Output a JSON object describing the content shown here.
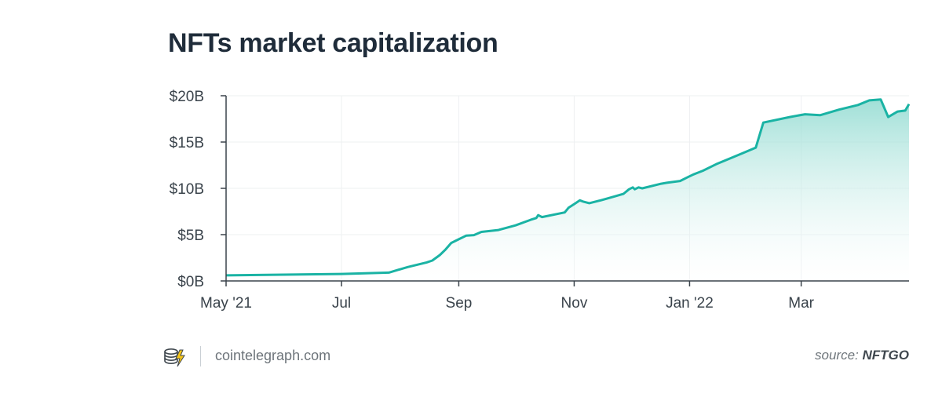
{
  "title": "NFTs market capitalization",
  "footer": {
    "site": "cointelegraph.com",
    "source_prefix": "source:",
    "source_name": "NFTGO"
  },
  "colors": {
    "line": "#1ab3a4",
    "fill_top": "#8fdad0",
    "text": "#1f2c3a",
    "axis_text": "#3a434b",
    "grid": "#eef0f2"
  },
  "icons": {
    "logo": "coin-stack-lightning-icon"
  },
  "chart_data": {
    "type": "area",
    "title": "NFTs market capitalization",
    "xlabel": "",
    "ylabel": "",
    "x_ticks": [
      "May '21",
      "Jul",
      "Sep",
      "Nov",
      "Jan '22",
      "Mar"
    ],
    "x_tick_dates": [
      "2021-05-01",
      "2021-07-01",
      "2021-09-01",
      "2021-11-01",
      "2022-01-01",
      "2022-03-01"
    ],
    "x_range": [
      "2021-05-01",
      "2022-04-27"
    ],
    "y_ticks": [
      "$0B",
      "$5B",
      "$10B",
      "$15B",
      "$20B"
    ],
    "y_tick_values": [
      0,
      5,
      10,
      15,
      20
    ],
    "ylim": [
      0,
      20
    ],
    "y_unit": "B USD",
    "grid": true,
    "legend": "none",
    "series": [
      {
        "points": [
          [
            "2021-05-01",
            0.6
          ],
          [
            "2021-07-01",
            0.75
          ],
          [
            "2021-07-26",
            0.9
          ],
          [
            "2021-08-05",
            1.5
          ],
          [
            "2021-08-15",
            2.0
          ],
          [
            "2021-08-18",
            2.2
          ],
          [
            "2021-08-22",
            2.8
          ],
          [
            "2021-08-25",
            3.4
          ],
          [
            "2021-08-28",
            4.1
          ],
          [
            "2021-09-01",
            4.5
          ],
          [
            "2021-09-05",
            4.9
          ],
          [
            "2021-09-09",
            4.95
          ],
          [
            "2021-09-13",
            5.3
          ],
          [
            "2021-09-22",
            5.5
          ],
          [
            "2021-10-01",
            6.0
          ],
          [
            "2021-10-09",
            6.6
          ],
          [
            "2021-10-12",
            6.8
          ],
          [
            "2021-10-13",
            7.1
          ],
          [
            "2021-10-15",
            6.9
          ],
          [
            "2021-10-27",
            7.4
          ],
          [
            "2021-10-29",
            7.9
          ],
          [
            "2021-11-01",
            8.3
          ],
          [
            "2021-11-04",
            8.7
          ],
          [
            "2021-11-06",
            8.55
          ],
          [
            "2021-11-09",
            8.4
          ],
          [
            "2021-11-15",
            8.7
          ],
          [
            "2021-11-22",
            9.1
          ],
          [
            "2021-11-27",
            9.4
          ],
          [
            "2021-11-30",
            9.9
          ],
          [
            "2021-12-02",
            10.1
          ],
          [
            "2021-12-03",
            9.9
          ],
          [
            "2021-12-05",
            10.1
          ],
          [
            "2021-12-07",
            10.0
          ],
          [
            "2021-12-17",
            10.5
          ],
          [
            "2021-12-20",
            10.6
          ],
          [
            "2021-12-27",
            10.8
          ],
          [
            "2021-12-31",
            11.2
          ],
          [
            "2022-01-03",
            11.5
          ],
          [
            "2022-01-08",
            11.9
          ],
          [
            "2022-01-15",
            12.6
          ],
          [
            "2022-01-22",
            13.2
          ],
          [
            "2022-01-29",
            13.8
          ],
          [
            "2022-02-05",
            14.4
          ],
          [
            "2022-02-09",
            17.1
          ],
          [
            "2022-02-23",
            17.7
          ],
          [
            "2022-03-03",
            18.0
          ],
          [
            "2022-03-11",
            17.9
          ],
          [
            "2022-03-21",
            18.5
          ],
          [
            "2022-03-31",
            19.0
          ],
          [
            "2022-04-06",
            19.5
          ],
          [
            "2022-04-12",
            19.6
          ],
          [
            "2022-04-16",
            17.7
          ],
          [
            "2022-04-21",
            18.3
          ],
          [
            "2022-04-25",
            18.4
          ],
          [
            "2022-04-27",
            19.1
          ],
          [
            "2022-05-01",
            19.1
          ]
        ]
      }
    ]
  }
}
